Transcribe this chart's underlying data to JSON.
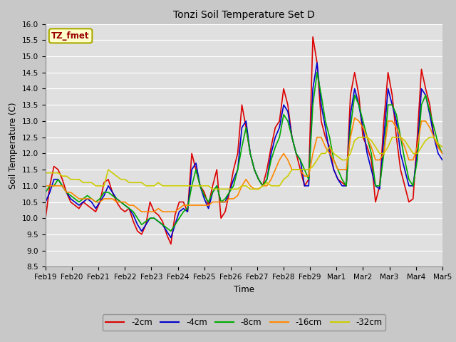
{
  "title": "Tonzi Soil Temperature Set D",
  "xlabel": "Time",
  "ylabel": "Soil Temperature (C)",
  "ylim": [
    8.5,
    16.0
  ],
  "fig_bg_color": "#c8c8c8",
  "plot_bg_color": "#e0e0e0",
  "legend_label": "TZ_fmet",
  "legend_bg": "#ffffcc",
  "legend_border": "#aaaa00",
  "x_tick_labels": [
    "Feb 19",
    "Feb 20",
    "Feb 21",
    "Feb 22",
    "Feb 23",
    "Feb 24",
    "Feb 25",
    "Feb 26",
    "Feb 27",
    "Feb 28",
    "Feb 29",
    "Mar 1",
    "Mar 2",
    "Mar 3",
    "Mar 4",
    "Mar 5"
  ],
  "series_labels": [
    "-2cm",
    "-4cm",
    "-8cm",
    "-16cm",
    "-32cm"
  ],
  "series_colors": [
    "#dd0000",
    "#0000cc",
    "#00aa00",
    "#ff8800",
    "#cccc00"
  ],
  "line_width": 1.2,
  "series_2cm": [
    10.0,
    11.0,
    11.6,
    11.5,
    11.2,
    10.8,
    10.5,
    10.4,
    10.3,
    10.5,
    10.4,
    10.3,
    10.2,
    10.5,
    11.1,
    11.2,
    10.8,
    10.5,
    10.3,
    10.2,
    10.3,
    9.9,
    9.6,
    9.5,
    9.8,
    10.5,
    10.2,
    10.1,
    9.9,
    9.5,
    9.2,
    10.1,
    10.5,
    10.5,
    10.2,
    12.0,
    11.5,
    11.0,
    10.8,
    10.4,
    11.0,
    11.5,
    10.0,
    10.2,
    10.8,
    11.5,
    12.0,
    13.5,
    12.8,
    12.0,
    11.5,
    11.2,
    11.0,
    11.5,
    12.2,
    12.8,
    13.0,
    14.0,
    13.5,
    12.5,
    12.0,
    11.5,
    11.0,
    11.2,
    15.6,
    14.8,
    13.0,
    12.5,
    12.2,
    11.5,
    11.2,
    11.1,
    11.0,
    13.8,
    14.5,
    13.8,
    12.5,
    12.2,
    11.8,
    10.5,
    11.0,
    13.0,
    14.5,
    13.8,
    12.5,
    11.5,
    11.0,
    10.5,
    10.6,
    12.5,
    14.6,
    14.0,
    13.5,
    12.5,
    12.2,
    12.0
  ],
  "series_4cm": [
    10.5,
    10.8,
    11.2,
    11.2,
    11.0,
    10.8,
    10.6,
    10.5,
    10.4,
    10.5,
    10.6,
    10.5,
    10.3,
    10.5,
    10.7,
    11.0,
    10.8,
    10.6,
    10.5,
    10.4,
    10.3,
    10.1,
    9.8,
    9.6,
    9.8,
    10.0,
    10.0,
    9.9,
    9.8,
    9.6,
    9.4,
    9.8,
    10.2,
    10.3,
    10.2,
    11.5,
    11.7,
    11.0,
    10.6,
    10.3,
    10.8,
    11.0,
    10.5,
    10.5,
    10.8,
    11.2,
    11.5,
    12.8,
    13.0,
    12.0,
    11.5,
    11.2,
    11.0,
    11.2,
    12.0,
    12.5,
    12.8,
    13.5,
    13.3,
    12.5,
    12.0,
    11.8,
    11.0,
    11.0,
    14.0,
    14.8,
    13.5,
    12.8,
    12.0,
    11.5,
    11.2,
    11.0,
    11.0,
    13.2,
    14.0,
    13.5,
    12.8,
    12.0,
    11.5,
    11.0,
    10.9,
    12.5,
    14.0,
    13.5,
    13.0,
    12.0,
    11.5,
    11.0,
    11.0,
    12.0,
    14.0,
    13.8,
    13.2,
    12.5,
    12.0,
    11.8
  ],
  "series_8cm": [
    10.8,
    11.0,
    11.0,
    11.2,
    11.0,
    10.8,
    10.7,
    10.6,
    10.5,
    10.6,
    10.7,
    10.6,
    10.5,
    10.6,
    10.8,
    10.8,
    10.7,
    10.6,
    10.5,
    10.4,
    10.3,
    10.2,
    10.0,
    9.8,
    9.9,
    10.0,
    10.0,
    9.9,
    9.8,
    9.7,
    9.6,
    9.8,
    10.0,
    10.2,
    10.3,
    11.0,
    11.5,
    11.0,
    10.7,
    10.5,
    10.8,
    11.0,
    10.5,
    10.6,
    10.8,
    11.0,
    11.5,
    12.2,
    12.8,
    12.0,
    11.5,
    11.2,
    11.0,
    11.2,
    11.8,
    12.2,
    12.5,
    13.2,
    13.0,
    12.5,
    12.0,
    11.8,
    11.5,
    11.2,
    13.5,
    14.5,
    13.8,
    13.0,
    12.5,
    11.8,
    11.5,
    11.2,
    11.0,
    12.8,
    13.8,
    13.5,
    13.0,
    12.5,
    12.0,
    11.0,
    11.0,
    12.0,
    13.5,
    13.5,
    13.2,
    12.5,
    11.8,
    11.2,
    11.0,
    11.8,
    13.5,
    13.8,
    13.3,
    12.8,
    12.3,
    12.0
  ],
  "series_16cm": [
    11.0,
    11.0,
    11.0,
    11.0,
    11.0,
    10.8,
    10.8,
    10.7,
    10.6,
    10.6,
    10.6,
    10.6,
    10.5,
    10.5,
    10.6,
    10.6,
    10.6,
    10.5,
    10.5,
    10.5,
    10.4,
    10.4,
    10.3,
    10.2,
    10.2,
    10.2,
    10.2,
    10.3,
    10.2,
    10.2,
    10.2,
    10.2,
    10.3,
    10.4,
    10.4,
    10.4,
    10.4,
    10.4,
    10.4,
    10.4,
    10.5,
    10.5,
    10.5,
    10.5,
    10.6,
    10.6,
    10.7,
    11.0,
    11.2,
    11.0,
    10.9,
    10.9,
    11.0,
    11.0,
    11.2,
    11.5,
    11.8,
    12.0,
    11.8,
    11.5,
    11.5,
    11.5,
    11.3,
    11.3,
    12.0,
    12.5,
    12.5,
    12.2,
    12.0,
    11.8,
    11.5,
    11.5,
    11.5,
    12.5,
    13.1,
    13.0,
    12.8,
    12.5,
    12.2,
    11.8,
    11.8,
    12.0,
    13.0,
    13.0,
    12.8,
    12.5,
    12.2,
    11.8,
    11.8,
    12.2,
    13.0,
    13.0,
    12.8,
    12.5,
    12.2,
    12.0
  ],
  "series_32cm": [
    11.4,
    11.4,
    11.4,
    11.4,
    11.3,
    11.3,
    11.2,
    11.2,
    11.2,
    11.1,
    11.1,
    11.1,
    11.0,
    11.0,
    11.0,
    11.5,
    11.4,
    11.3,
    11.2,
    11.2,
    11.1,
    11.1,
    11.1,
    11.1,
    11.0,
    11.0,
    11.0,
    11.1,
    11.0,
    11.0,
    11.0,
    11.0,
    11.0,
    11.0,
    11.0,
    11.0,
    11.0,
    11.0,
    11.0,
    11.0,
    10.9,
    10.9,
    10.9,
    10.9,
    10.9,
    10.9,
    10.9,
    11.0,
    11.0,
    10.9,
    10.9,
    10.9,
    11.0,
    11.1,
    11.0,
    11.0,
    11.0,
    11.2,
    11.3,
    11.5,
    11.5,
    11.5,
    11.5,
    11.5,
    11.6,
    11.8,
    12.0,
    12.0,
    12.2,
    12.0,
    11.9,
    11.8,
    11.8,
    12.0,
    12.4,
    12.5,
    12.5,
    12.5,
    12.4,
    12.2,
    12.0,
    12.0,
    12.2,
    12.5,
    12.5,
    12.5,
    12.4,
    12.2,
    12.0,
    12.0,
    12.2,
    12.4,
    12.5,
    12.5,
    12.3,
    12.2
  ]
}
